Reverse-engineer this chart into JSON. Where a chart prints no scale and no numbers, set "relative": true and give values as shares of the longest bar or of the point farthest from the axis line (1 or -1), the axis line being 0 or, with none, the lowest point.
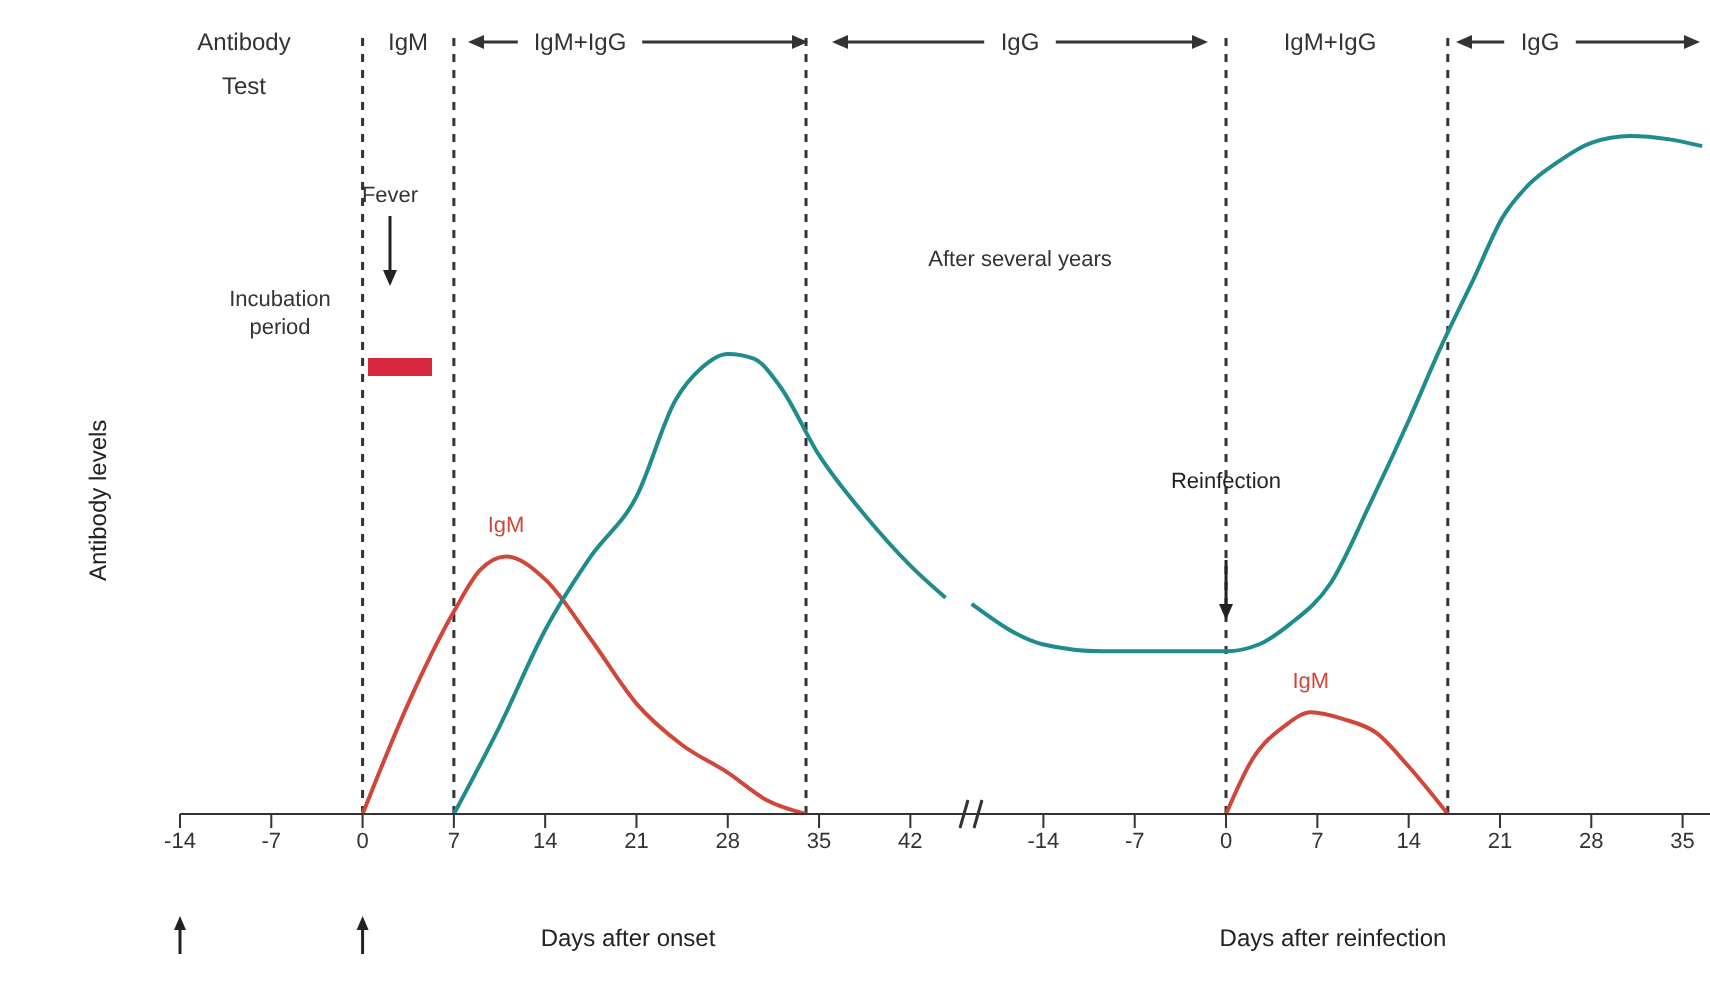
{
  "chart_data": [
    {
      "type": "line",
      "relative": true,
      "ylabel": "Antibody levels",
      "xlabel": "Days after onset",
      "marker": "none",
      "line_style": "solid",
      "xlim": [
        -14,
        45.5
      ],
      "xticks": [
        -14,
        -7,
        0,
        7,
        14,
        21,
        28,
        35,
        42
      ],
      "series": [
        {
          "name": "IgM",
          "color": "#d0473a",
          "x": [
            0,
            3.5,
            7,
            9,
            11,
            14,
            17.5,
            21,
            24.5,
            28,
            31,
            34
          ],
          "values": [
            0,
            0.24,
            0.44,
            0.53,
            0.56,
            0.51,
            0.38,
            0.24,
            0.15,
            0.09,
            0.03,
            0
          ]
        },
        {
          "color": "#1e8c8c",
          "x": [
            7,
            10.5,
            14,
            17.5,
            21,
            24,
            26,
            28,
            30,
            32,
            35,
            38.5,
            42,
            44.7
          ],
          "values": [
            0,
            0.19,
            0.4,
            0.56,
            0.69,
            0.9,
            0.97,
            1,
            0.99,
            0.93,
            0.78,
            0.65,
            0.54,
            0.47
          ]
        }
      ],
      "ref_lines": [
        {
          "axis": "x",
          "value": 0,
          "line_style": "dashed"
        },
        {
          "axis": "x",
          "value": 7,
          "line_style": "dashed"
        },
        {
          "axis": "x",
          "value": 34,
          "line_style": "dashed"
        }
      ],
      "annotations": [
        "Antibody Test",
        "IgM",
        "IgM+IgG",
        "Incubation period",
        "Fever"
      ]
    },
    {
      "type": "line",
      "relative": true,
      "xlabel": "Days after reinfection",
      "marker": "none",
      "line_style": "solid",
      "tick_labels": "x",
      "xlim": [
        -20.7,
        37.1
      ],
      "xticks": [
        -14,
        -7,
        0,
        7,
        14,
        21,
        28,
        35
      ],
      "series": [
        {
          "color": "#1e8c8c",
          "x": [
            -19.5,
            -14,
            -9.5,
            -4.5,
            0,
            2.5,
            4.9,
            8,
            11.1,
            14,
            16.5,
            19,
            21.2,
            23.3,
            25.3,
            28,
            31,
            34,
            36.5
          ],
          "values": [
            0.31,
            0.25,
            0.24,
            0.24,
            0.24,
            0.25,
            0.28,
            0.34,
            0.46,
            0.58,
            0.69,
            0.79,
            0.88,
            0.93,
            0.96,
            0.99,
            1,
            0.995,
            0.985
          ]
        },
        {
          "name": "IgM",
          "color": "#d0473a",
          "x": [
            0,
            2,
            4.5,
            6.5,
            9,
            11.5,
            14,
            17
          ],
          "values": [
            0,
            0.08,
            0.13,
            0.15,
            0.14,
            0.12,
            0.07,
            0
          ]
        }
      ],
      "ref_lines": [
        {
          "axis": "x",
          "value": 0,
          "label": "Reinfection",
          "line_style": "dashed"
        },
        {
          "axis": "x",
          "value": 17,
          "line_style": "dashed"
        }
      ],
      "annotations": [
        "IgG",
        "IgM+IgG",
        "IgG",
        "After several years"
      ]
    }
  ]
}
